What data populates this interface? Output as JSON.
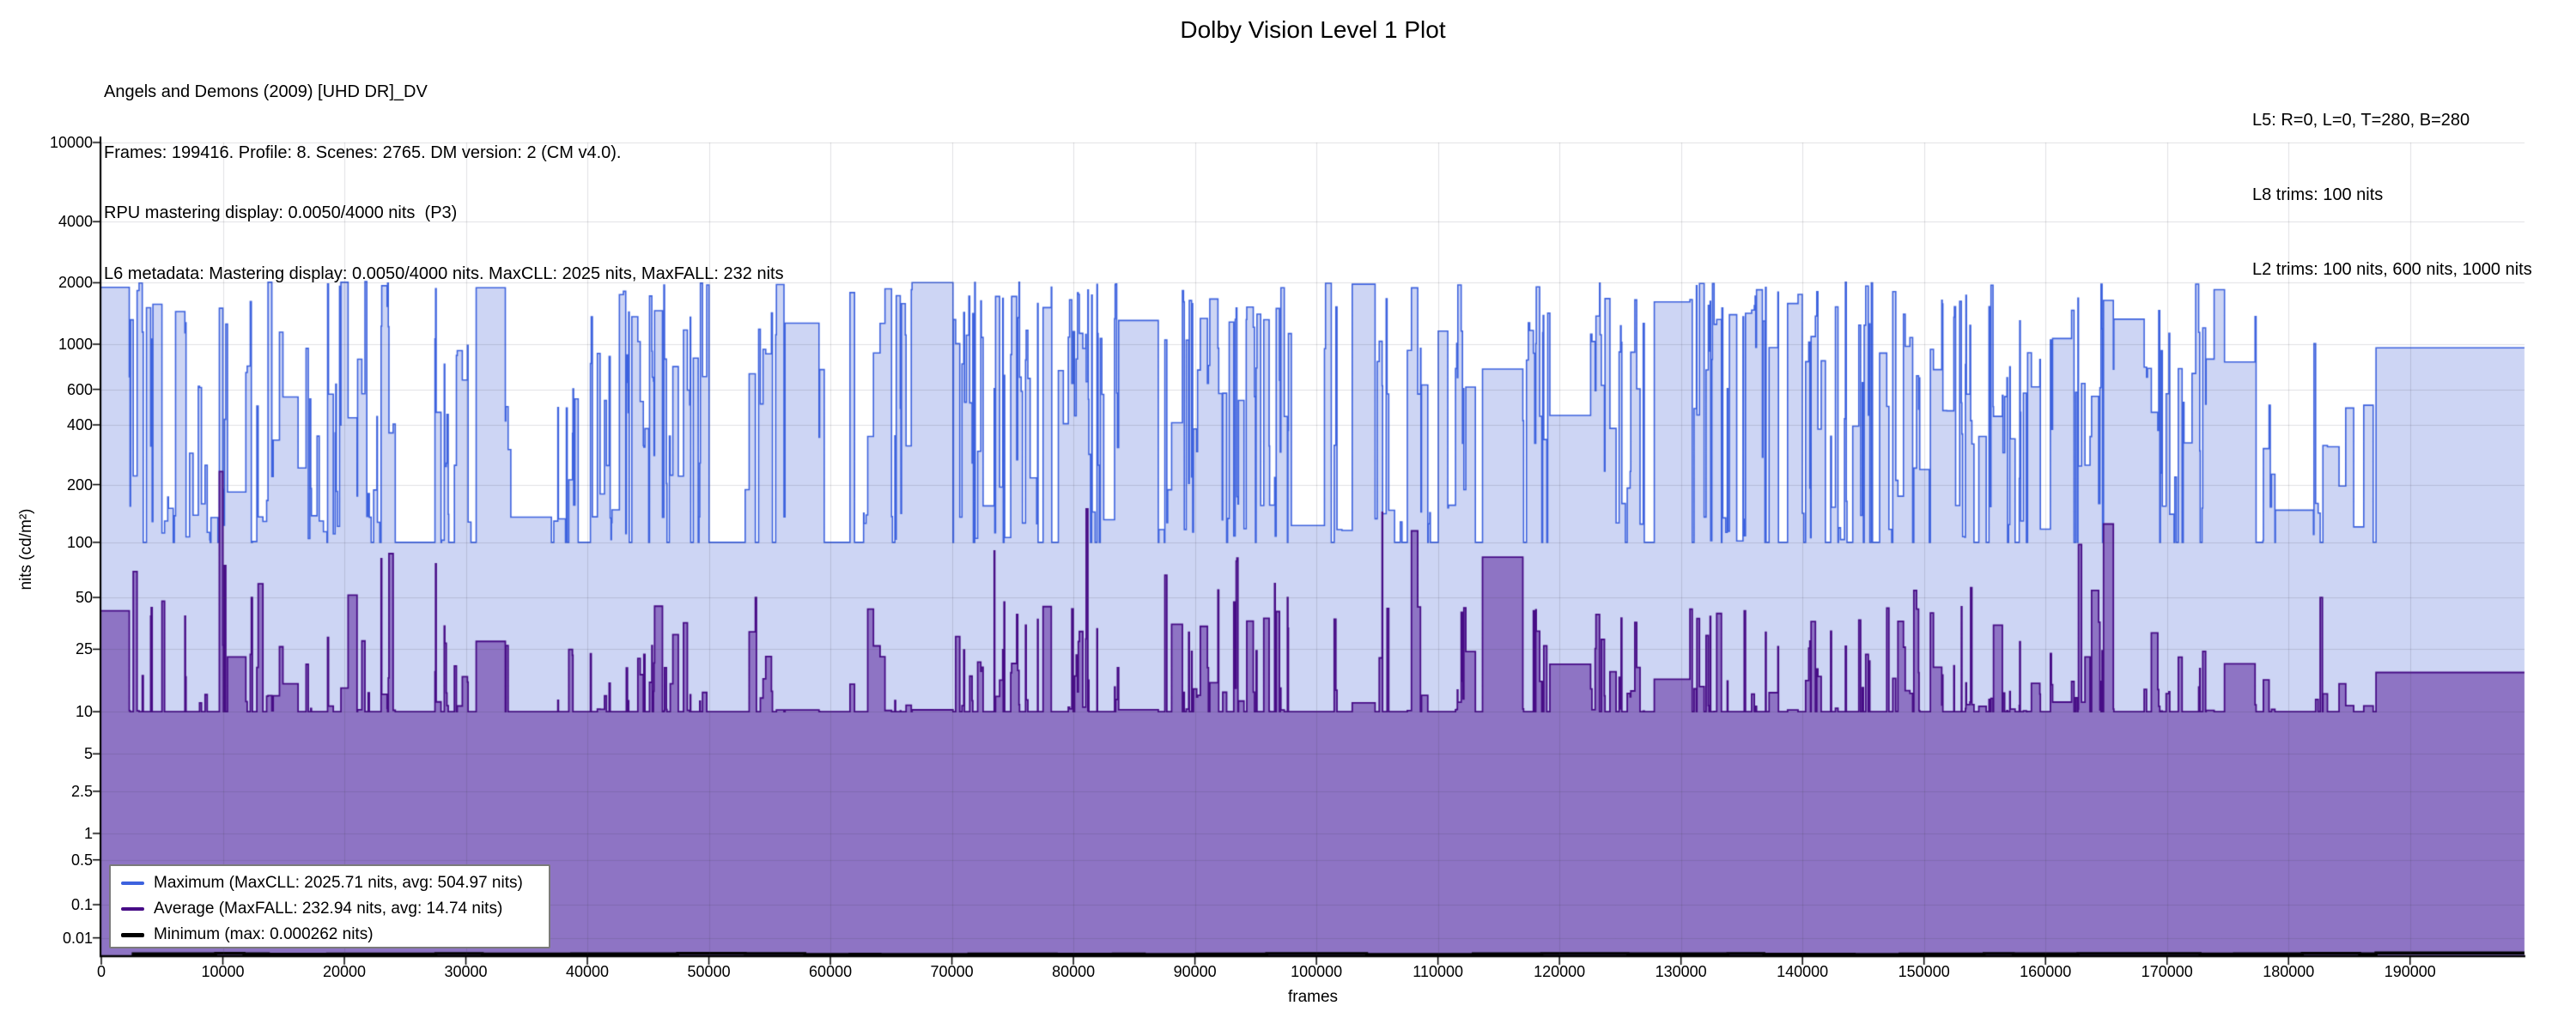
{
  "header": {
    "title": "Dolby Vision Level 1 Plot",
    "info_left": [
      "Angels and Demons (2009) [UHD DR]_DV",
      "Frames: 199416. Profile: 8. Scenes: 2765. DM version: 2 (CM v4.0).",
      "RPU mastering display: 0.0050/4000 nits  (P3)",
      "L6 metadata: Mastering display: 0.0050/4000 nits. MaxCLL: 2025 nits, MaxFALL: 232 nits"
    ],
    "info_right": [
      "L5: R=0, L=0, T=280, B=280",
      "L8 trims: 100 nits",
      "L2 trims: 100 nits, 600 nits, 1000 nits"
    ]
  },
  "chart_data": {
    "type": "area",
    "subtype": "step-area, per-scene Dolby Vision L1 min/avg/max luminance",
    "title": "Dolby Vision Level 1 Plot",
    "xlabel": "frames",
    "ylabel": "nits (cd/m²)",
    "y_scale": "PQ (SMPTE ST 2084)",
    "grid": true,
    "legend_position": "lower-left",
    "x_range": [
      0,
      199416
    ],
    "scene_count": 2765,
    "x_ticks": [
      0,
      10000,
      20000,
      30000,
      40000,
      50000,
      60000,
      70000,
      80000,
      90000,
      100000,
      110000,
      120000,
      130000,
      140000,
      150000,
      160000,
      170000,
      180000,
      190000
    ],
    "y_ticks_nits": [
      10000,
      4000,
      2000,
      1000,
      600,
      400,
      200,
      100,
      50,
      25,
      10,
      5,
      2.5,
      1,
      0.5,
      0.1,
      0.01
    ],
    "y_tick_labels": [
      "10000",
      "4000",
      "2000",
      "1000",
      "600",
      "400",
      "200",
      "100",
      "50",
      "25",
      "10",
      "5",
      "2.5",
      "1",
      "0.5",
      "0.1",
      "0.01"
    ],
    "series": [
      {
        "name": "Maximum",
        "legend_label": "Maximum (MaxCLL: 2025.71 nits, avg: 504.97 nits)",
        "line_color": "#3D62DE",
        "fill_color": "#CDD5F4",
        "maxcll_nits": 2025.71,
        "avg_nits": 504.97,
        "floor_nits": 100,
        "opening_plateau": {
          "frames": [
            0,
            2300
          ],
          "nits": 1900
        },
        "ending_plateau": {
          "frames": [
            187200,
            199416
          ],
          "nits": 960
        }
      },
      {
        "name": "Average",
        "legend_label": "Average (MaxFALL: 232.94 nits, avg: 14.74 nits)",
        "line_color": "#470C86",
        "fill_color": "#8E74C4",
        "maxfall_nits": 232.94,
        "maxfall_frame": 9900,
        "avg_nits": 14.74,
        "floor_nits": 10,
        "opening_plateau": {
          "frames": [
            0,
            2300
          ],
          "nits": 42
        },
        "ending_plateau": {
          "frames": [
            187200,
            199416
          ],
          "nits": 18
        }
      },
      {
        "name": "Minimum",
        "legend_label": "Minimum (max: 0.000262 nits)",
        "line_color": "#000000",
        "max_nits": 0.000262,
        "starts_at_frame": 2500
      }
    ],
    "peak_frames": [
      {
        "frame": 21700,
        "max": 2025.71
      },
      {
        "frame": 55600,
        "max": 1960
      },
      {
        "frame": 71900,
        "max": 2005
      },
      {
        "frame": 83500,
        "max": 1975
      },
      {
        "frame": 100800,
        "max": 1990
      },
      {
        "frame": 111800,
        "max": 1950
      },
      {
        "frame": 131600,
        "max": 1985
      },
      {
        "frame": 145700,
        "max": 2000
      },
      {
        "frame": 155600,
        "max": 1945
      },
      {
        "frame": 172600,
        "max": 1970
      },
      {
        "frame": 81100,
        "avg": 150
      },
      {
        "frame": 108000,
        "avg": 115
      },
      {
        "frame": 164800,
        "avg": 125
      }
    ],
    "quiet_zone_frames": [
      33000,
      39500
    ],
    "wind_down_frames": [
      183200,
      187200
    ]
  }
}
